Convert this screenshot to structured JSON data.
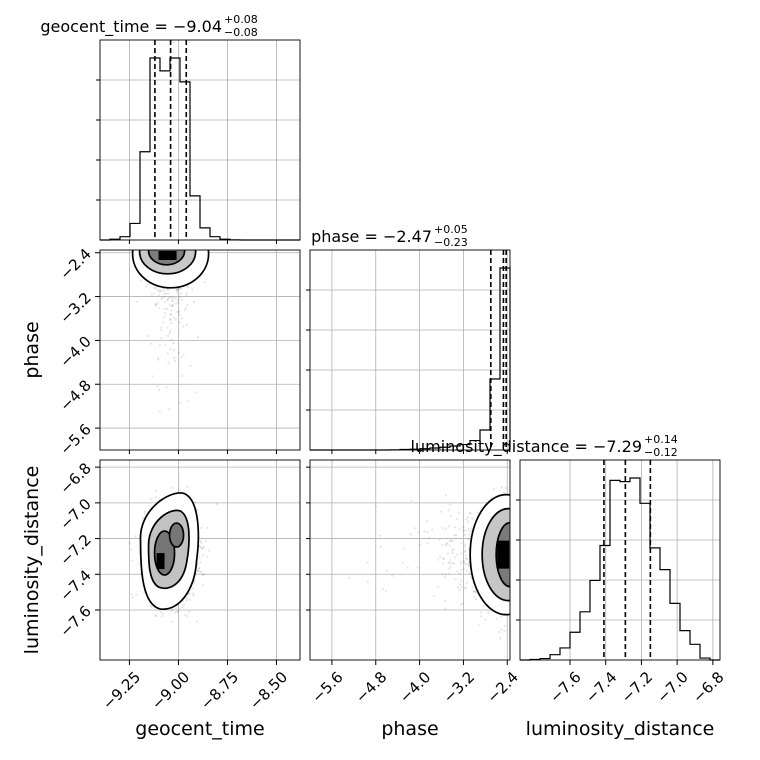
{
  "chart_data": {
    "type": "corner",
    "parameters": [
      "geocent_time",
      "phase",
      "luminosity_distance"
    ],
    "axis_labels": {
      "geocent_time": "geocent_time",
      "phase": "phase",
      "luminosity_distance": "luminosity_distance"
    },
    "ranges": {
      "geocent_time": [
        -9.4,
        -8.38
      ],
      "phase": [
        -6.0,
        -2.35
      ],
      "luminosity_distance": [
        -7.88,
        -6.76
      ]
    },
    "ticks": {
      "geocent_time": {
        "values": [
          -9.25,
          -9.0,
          -8.75,
          -8.5
        ],
        "labels": [
          "−9.25",
          "−9.00",
          "−8.75",
          "−8.50"
        ]
      },
      "phase": {
        "values": [
          -5.6,
          -4.8,
          -4.0,
          -3.2,
          -2.4
        ],
        "labels": [
          "−5.6",
          "−4.8",
          "−4.0",
          "−3.2",
          "−2.4"
        ]
      },
      "luminosity_distance": {
        "values": [
          -7.6,
          -7.4,
          -7.2,
          -7.0,
          -6.8
        ],
        "labels": [
          "−7.6",
          "−7.4",
          "−7.2",
          "−7.0",
          "−6.8"
        ]
      }
    },
    "grid": true,
    "titles": [
      {
        "param": "geocent_time",
        "main": "geocent_time = −9.04",
        "sup": "+0.08",
        "sub": "−0.08"
      },
      {
        "param": "phase",
        "main": "phase = −2.47",
        "sup": "+0.05",
        "sub": "−0.23"
      },
      {
        "param": "luminosity_distance",
        "main": "luminosity_distance = −7.29",
        "sup": "+0.14",
        "sub": "−0.12"
      }
    ],
    "diagonal": [
      {
        "param": "geocent_time",
        "edges": [
          -9.4,
          -9.349,
          -9.298,
          -9.247,
          -9.196,
          -9.145,
          -9.094,
          -9.043,
          -8.992,
          -8.941,
          -8.89,
          -8.839,
          -8.788,
          -8.737,
          -8.686,
          -8.635,
          -8.584,
          -8.533,
          -8.482,
          -8.431,
          -8.38
        ],
        "counts": [
          0,
          4,
          18,
          90,
          480,
          990,
          920,
          990,
          860,
          240,
          66,
          18,
          4,
          1,
          0,
          0,
          0,
          0,
          0,
          0
        ],
        "quantiles": [
          -9.12,
          -9.04,
          -8.96
        ]
      },
      {
        "param": "phase",
        "edges": [
          -6.0,
          -5.8175,
          -5.635,
          -5.4525,
          -5.27,
          -5.0875,
          -4.905,
          -4.7225,
          -4.54,
          -4.3575,
          -4.175,
          -3.9925,
          -3.81,
          -3.6275,
          -3.445,
          -3.2625,
          -3.08,
          -2.8975,
          -2.715,
          -2.5325,
          -2.35
        ],
        "counts": [
          0,
          0,
          0,
          0,
          0,
          0,
          0,
          0,
          1,
          3,
          4,
          7,
          11,
          15,
          22,
          30,
          52,
          110,
          390,
          1000
        ],
        "quantiles": [
          -2.7,
          -2.47,
          -2.42
        ]
      },
      {
        "param": "luminosity_distance",
        "edges": [
          -7.88,
          -7.824,
          -7.768,
          -7.712,
          -7.656,
          -7.6,
          -7.544,
          -7.488,
          -7.432,
          -7.376,
          -7.32,
          -7.264,
          -7.208,
          -7.152,
          -7.096,
          -7.04,
          -6.984,
          -6.928,
          -6.872,
          -6.816,
          -6.76
        ],
        "counts": [
          0,
          2,
          6,
          22,
          50,
          115,
          200,
          330,
          475,
          745,
          740,
          755,
          650,
          465,
          375,
          235,
          122,
          65,
          8,
          0
        ],
        "quantiles": [
          -7.41,
          -7.29,
          -7.15
        ]
      }
    ],
    "pairs": [
      {
        "x": "geocent_time",
        "y": "phase",
        "center": [
          -9.04,
          -2.47
        ]
      },
      {
        "x": "geocent_time",
        "y": "luminosity_distance",
        "center": [
          -9.04,
          -7.29
        ]
      },
      {
        "x": "phase",
        "y": "luminosity_distance",
        "center": [
          -2.47,
          -7.29
        ]
      }
    ]
  }
}
